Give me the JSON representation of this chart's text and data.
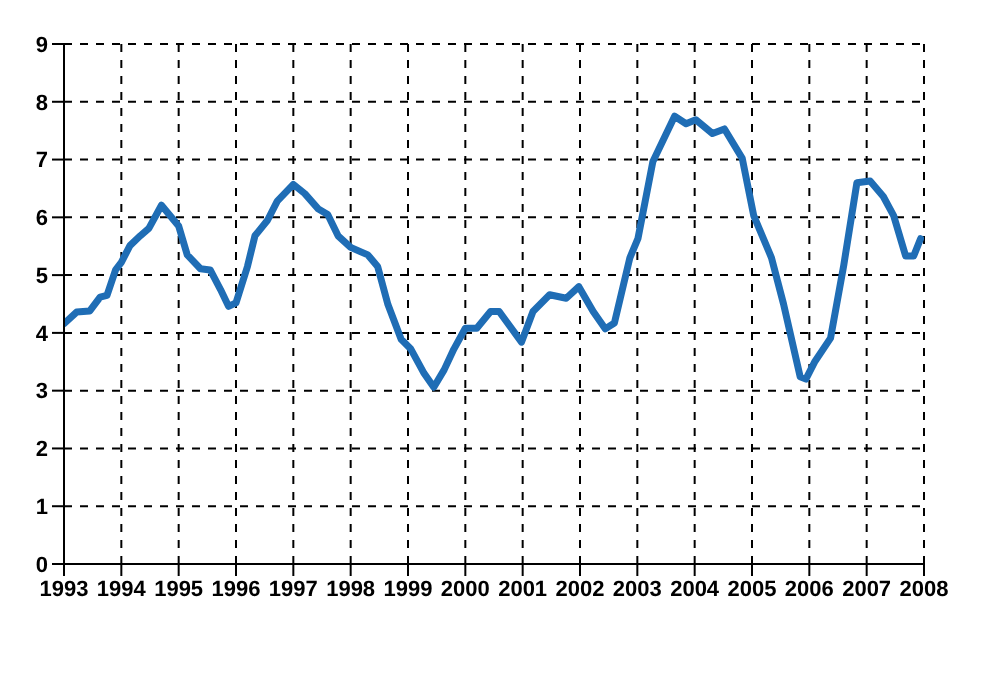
{
  "chart_data": {
    "type": "line",
    "x": [
      1993.0,
      1993.22,
      1993.45,
      1993.63,
      1993.75,
      1993.9,
      1994.0,
      1994.15,
      1994.33,
      1994.48,
      1994.7,
      1995.0,
      1995.15,
      1995.38,
      1995.55,
      1995.73,
      1995.87,
      1996.0,
      1996.2,
      1996.33,
      1996.55,
      1996.72,
      1997.0,
      1997.2,
      1997.43,
      1997.6,
      1997.78,
      1998.0,
      1998.3,
      1998.47,
      1998.65,
      1998.88,
      1999.05,
      1999.28,
      1999.45,
      1999.63,
      1999.8,
      2000.0,
      2000.2,
      2000.44,
      2000.59,
      2000.98,
      2001.18,
      2001.47,
      2001.76,
      2001.98,
      2002.23,
      2002.44,
      2002.6,
      2002.87,
      2003.01,
      2003.27,
      2003.65,
      2003.85,
      2004.02,
      2004.31,
      2004.52,
      2004.83,
      2005.03,
      2005.34,
      2005.55,
      2005.84,
      2005.94,
      2006.1,
      2006.37,
      2006.6,
      2006.83,
      2007.06,
      2007.29,
      2007.47,
      2007.68,
      2007.82,
      2007.94
    ],
    "series": [
      {
        "color": "#1f6db5",
        "values": [
          4.16,
          4.36,
          4.38,
          4.62,
          4.65,
          5.09,
          5.22,
          5.51,
          5.68,
          5.81,
          6.21,
          5.85,
          5.35,
          5.11,
          5.09,
          4.75,
          4.46,
          4.52,
          5.15,
          5.68,
          5.95,
          6.28,
          6.57,
          6.41,
          6.15,
          6.05,
          5.68,
          5.48,
          5.35,
          5.15,
          4.49,
          3.89,
          3.72,
          3.3,
          3.06,
          3.36,
          3.72,
          4.08,
          4.08,
          4.37,
          4.37,
          3.84,
          4.37,
          4.66,
          4.6,
          4.8,
          4.37,
          4.07,
          4.17,
          5.3,
          5.63,
          6.96,
          7.75,
          7.62,
          7.69,
          7.45,
          7.53,
          7.02,
          6.03,
          5.3,
          4.5,
          3.24,
          3.2,
          3.51,
          3.91,
          5.17,
          6.6,
          6.63,
          6.36,
          6.03,
          5.33,
          5.33,
          5.63
        ]
      }
    ],
    "xlim": [
      1993,
      2008
    ],
    "xticks": [
      1993,
      1994,
      1995,
      1996,
      1997,
      1998,
      1999,
      2000,
      2001,
      2002,
      2003,
      2004,
      2005,
      2006,
      2007,
      2008
    ],
    "ylim": [
      0,
      9
    ],
    "yticks": [
      0,
      1,
      2,
      3,
      4,
      5,
      6,
      7,
      8,
      9
    ],
    "grid": true,
    "marker": "none",
    "line_style": "solid",
    "legend": false
  }
}
